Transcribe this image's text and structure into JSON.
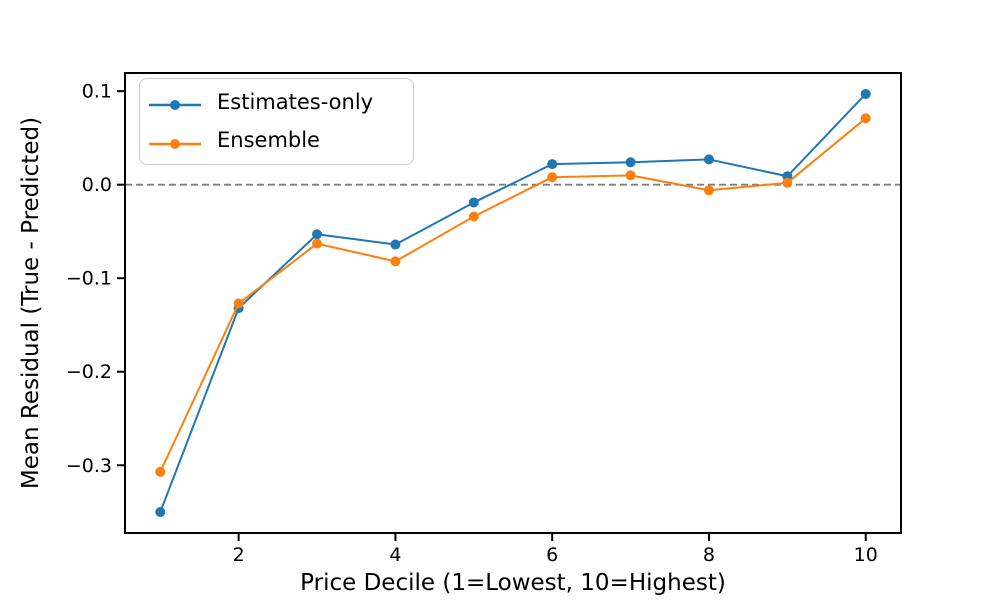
{
  "chart_data": {
    "type": "line",
    "title": "",
    "xlabel": "Price Decile (1=Lowest, 10=Highest)",
    "ylabel": "Mean Residual (True - Predicted)",
    "x": [
      1,
      2,
      3,
      4,
      5,
      6,
      7,
      8,
      9,
      10
    ],
    "series": [
      {
        "name": "Estimates-only",
        "color": "#1f77b4",
        "marker": "circle",
        "values": [
          -0.35,
          -0.132,
          -0.053,
          -0.064,
          -0.019,
          0.022,
          0.024,
          0.027,
          0.009,
          0.097
        ]
      },
      {
        "name": "Ensemble",
        "color": "#ff7f0e",
        "marker": "circle",
        "values": [
          -0.307,
          -0.127,
          -0.063,
          -0.082,
          -0.034,
          0.008,
          0.01,
          -0.006,
          0.002,
          0.071
        ]
      }
    ],
    "xticks": {
      "values": [
        2,
        4,
        6,
        8,
        10
      ],
      "labels": [
        "2",
        "4",
        "6",
        "8",
        "10"
      ]
    },
    "yticks": {
      "values": [
        0.1,
        0.0,
        -0.1,
        -0.2,
        -0.3
      ],
      "labels": [
        "0.1",
        "0.0",
        "−0.1",
        "−0.2",
        "−0.3"
      ]
    },
    "xlim": [
      0.55,
      10.45
    ],
    "ylim": [
      -0.3724,
      0.1194
    ],
    "zero_line": {
      "value": 0,
      "style": "dashed",
      "color": "#808080"
    },
    "grid": false,
    "legend": {
      "position": "upper-left",
      "entries": [
        "Estimates-only",
        "Ensemble"
      ]
    },
    "colors": {
      "axis": "#000000",
      "text": "#000000",
      "background": "#ffffff",
      "legend_border": "#cccccc"
    }
  }
}
